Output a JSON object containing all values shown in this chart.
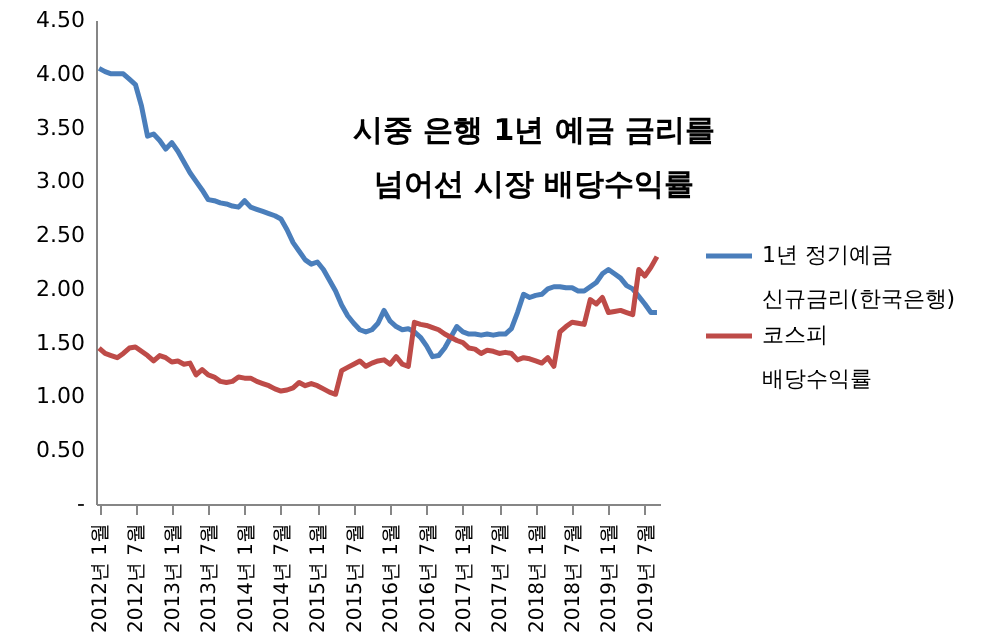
{
  "chart_data": {
    "type": "line",
    "title": "시중 은행 1년 예금 금리를\n넘어선 시장 배당수익률",
    "categories": [
      "2012년 1월",
      null,
      null,
      null,
      null,
      null,
      "2012년 7월",
      null,
      null,
      null,
      null,
      null,
      "2013년 1월",
      null,
      null,
      null,
      null,
      null,
      "2013년 7월",
      null,
      null,
      null,
      null,
      null,
      "2014년 1월",
      null,
      null,
      null,
      null,
      null,
      "2014년 7월",
      null,
      null,
      null,
      null,
      null,
      "2015년 1월",
      null,
      null,
      null,
      null,
      null,
      "2015년 7월",
      null,
      null,
      null,
      null,
      null,
      "2016년 1월",
      null,
      null,
      null,
      null,
      null,
      "2016년 7월",
      null,
      null,
      null,
      null,
      null,
      "2017년 1월",
      null,
      null,
      null,
      null,
      null,
      "2017년 7월",
      null,
      null,
      null,
      null,
      null,
      "2018년 1월",
      null,
      null,
      null,
      null,
      null,
      "2018년 7월",
      null,
      null,
      null,
      null,
      null,
      "2019년 1월",
      null,
      null,
      null,
      null,
      null,
      "2019년 7월",
      null,
      null
    ],
    "series": [
      {
        "name": "1년 정기예금\n신규금리(한국은행)",
        "color": "#4a7ebb",
        "values": [
          4.05,
          4.02,
          4.0,
          4.0,
          4.0,
          3.95,
          3.9,
          3.7,
          3.42,
          3.44,
          3.38,
          3.3,
          3.36,
          3.28,
          3.18,
          3.08,
          3.0,
          2.92,
          2.83,
          2.82,
          2.8,
          2.79,
          2.77,
          2.76,
          2.82,
          2.76,
          2.74,
          2.72,
          2.7,
          2.68,
          2.65,
          2.55,
          2.43,
          2.35,
          2.27,
          2.23,
          2.25,
          2.18,
          2.08,
          1.98,
          1.85,
          1.75,
          1.68,
          1.62,
          1.6,
          1.62,
          1.68,
          1.8,
          1.7,
          1.65,
          1.62,
          1.63,
          1.6,
          1.55,
          1.47,
          1.37,
          1.38,
          1.45,
          1.55,
          1.65,
          1.6,
          1.58,
          1.58,
          1.57,
          1.58,
          1.57,
          1.58,
          1.58,
          1.63,
          1.78,
          1.95,
          1.92,
          1.94,
          1.95,
          2.0,
          2.02,
          2.02,
          2.01,
          2.01,
          1.98,
          1.98,
          2.02,
          2.06,
          2.14,
          2.18,
          2.14,
          2.1,
          2.03,
          2.0,
          1.93,
          1.86,
          1.78,
          1.78
        ]
      },
      {
        "name": "코스피\n배당수익률",
        "color": "#be4b48",
        "values": [
          1.45,
          1.4,
          1.38,
          1.36,
          1.4,
          1.45,
          1.46,
          1.42,
          1.38,
          1.33,
          1.38,
          1.36,
          1.32,
          1.33,
          1.3,
          1.31,
          1.2,
          1.25,
          1.2,
          1.18,
          1.14,
          1.13,
          1.14,
          1.18,
          1.17,
          1.17,
          1.14,
          1.12,
          1.1,
          1.07,
          1.05,
          1.06,
          1.08,
          1.13,
          1.1,
          1.12,
          1.1,
          1.07,
          1.04,
          1.02,
          1.24,
          1.27,
          1.3,
          1.33,
          1.28,
          1.31,
          1.33,
          1.34,
          1.3,
          1.37,
          1.3,
          1.28,
          1.69,
          1.67,
          1.66,
          1.64,
          1.62,
          1.58,
          1.55,
          1.52,
          1.5,
          1.45,
          1.44,
          1.4,
          1.43,
          1.42,
          1.4,
          1.41,
          1.4,
          1.34,
          1.36,
          1.35,
          1.33,
          1.31,
          1.36,
          1.28,
          1.6,
          1.65,
          1.69,
          1.68,
          1.67,
          1.9,
          1.86,
          1.92,
          1.78,
          1.79,
          1.8,
          1.78,
          1.76,
          2.18,
          2.12,
          2.2,
          2.3
        ]
      }
    ],
    "ylim": [
      0,
      4.5
    ],
    "yticks": [
      {
        "value": 0,
        "label": "-"
      },
      {
        "value": 0.5,
        "label": "0.50"
      },
      {
        "value": 1,
        "label": "1.00"
      },
      {
        "value": 1.5,
        "label": "1.50"
      },
      {
        "value": 2,
        "label": "2.00"
      },
      {
        "value": 2.5,
        "label": "2.50"
      },
      {
        "value": 3,
        "label": "3.00"
      },
      {
        "value": 3.5,
        "label": "3.50"
      },
      {
        "value": 4,
        "label": "4.00"
      },
      {
        "value": 4.5,
        "label": "4.50"
      }
    ],
    "grid": false,
    "legend": "right",
    "marker": "none",
    "line_style": "solid"
  }
}
